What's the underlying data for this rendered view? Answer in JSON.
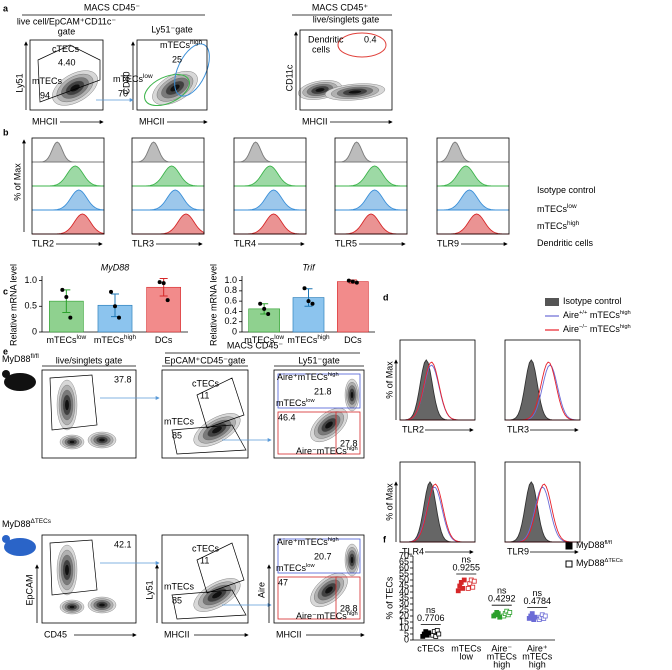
{
  "a": {
    "label": "a",
    "group_left": "MACS CD45⁻",
    "group_right": "MACS CD45⁺",
    "plots": [
      {
        "gate": [
          "live cell/EpCAM⁺CD11c⁻",
          "gate"
        ],
        "y_axis": "Ly51",
        "x_axis": "MHCII",
        "populations": [
          {
            "name": [
              "cTECs"
            ],
            "value": "4.40"
          },
          {
            "name": [
              "mTECs"
            ],
            "value": "94"
          }
        ]
      },
      {
        "gate": [
          "Ly51⁻gate"
        ],
        "y_axis": "CD80",
        "x_axis": "MHCII",
        "populations": [
          {
            "name": [
              "mTECs",
              "high"
            ],
            "value": "25",
            "color": "#3a8fd8"
          },
          {
            "name": [
              "mTECs",
              "low"
            ],
            "value": "70",
            "color": "#3cb44b"
          }
        ]
      },
      {
        "gate": [
          "live/singlets gate"
        ],
        "y_axis": "CD11c",
        "x_axis": "MHCII",
        "populations": [
          {
            "lines": [
              "Dendritic",
              "cells"
            ],
            "value": "0.4",
            "color": "#e0403a"
          }
        ]
      }
    ]
  },
  "b": {
    "label": "b",
    "y_axis": "% of Max",
    "markers": [
      "TLR2",
      "TLR3",
      "TLR4",
      "TLR5",
      "TLR9"
    ],
    "legend": [
      {
        "name": [
          "Isotype control"
        ],
        "color": "#7a7a7a"
      },
      {
        "name": [
          "mTECs",
          "low"
        ],
        "color": "#3cb44b"
      },
      {
        "name": [
          "mTECs",
          "high"
        ],
        "color": "#3a8fd8"
      },
      {
        "name": [
          "Dendritic cells"
        ],
        "color": "#d62728"
      }
    ]
  },
  "c": {
    "label": "c",
    "y_axis": "Relative mRNA level",
    "categories": [
      [
        "mTECs",
        "low"
      ],
      [
        "mTECs",
        "high"
      ],
      [
        "DCs"
      ]
    ],
    "colors": [
      "#8fd18f",
      "#8cc4ee",
      "#f28b8b"
    ],
    "label_colors": [
      "#2ca02c",
      "#1f77b4",
      "#d62728"
    ],
    "charts": [
      {
        "title": "MyD88",
        "ylim": [
          0,
          1.05
        ],
        "yticks": [
          0,
          0.5,
          {
            "value": 1,
            "label": "1.0"
          }
        ],
        "values": [
          0.6,
          0.52,
          0.87
        ],
        "errors": [
          0.22,
          0.22,
          0.17
        ],
        "points": [
          [
            0.82,
            0.68,
            0.28
          ],
          [
            0.78,
            0.5,
            0.28
          ],
          [
            0.97,
            0.95,
            0.62
          ]
        ]
      },
      {
        "title": "Trif",
        "ylim": [
          0,
          1.05
        ],
        "yticks": [
          0,
          0.2,
          0.4,
          0.6,
          0.8,
          {
            "value": 1,
            "label": "1.0"
          }
        ],
        "values": [
          0.45,
          0.67,
          0.98
        ],
        "errors": [
          0.1,
          0.17,
          0.03
        ],
        "points": [
          [
            0.55,
            0.45,
            0.35
          ],
          [
            0.85,
            0.6,
            0.55
          ],
          [
            1.0,
            0.98,
            0.96
          ]
        ]
      }
    ]
  },
  "d": {
    "label": "d",
    "y_axis": "% of Max",
    "markers": [
      "TLR2",
      "TLR3",
      "TLR4",
      "TLR9"
    ],
    "legend": [
      {
        "name": [
          "Isotype control"
        ],
        "color": "#555555"
      },
      {
        "name": [
          "Aire",
          "+/+",
          " mTECs",
          "high"
        ],
        "color": "#6b6bd6"
      },
      {
        "name": [
          "Aire",
          "−/−",
          " mTECs",
          "high"
        ],
        "color": "#e8202a"
      }
    ]
  },
  "e": {
    "label": "e",
    "group": "MACS CD45⁻",
    "aire_colors": [
      "#4a5bd6",
      "#d62728",
      "#2ca02c"
    ],
    "columns": [
      {
        "gate": "live/singlets gate",
        "y_axis": "EpCAM",
        "x_axis": "CD45"
      },
      {
        "gate": "EpCAM⁺CD45⁻gate",
        "y_axis": "Ly51",
        "x_axis": "MHCII"
      },
      {
        "gate": "Ly51⁻gate",
        "y_axis": "Aire",
        "x_axis": "MHCII"
      }
    ],
    "rows": [
      {
        "mouse": [
          "MyD88",
          "fl/fl"
        ],
        "singlets": "37.8",
        "ly51": [
          {
            "name": "cTECs",
            "value": "11"
          },
          {
            "name": "mTECs",
            "value": "85"
          }
        ],
        "aire": [
          {
            "name": [
              "Aire⁺mTECs",
              "high"
            ],
            "value": "21.8"
          },
          {
            "name": [
              "mTECs",
              "low"
            ],
            "value": "46.4"
          },
          {
            "name": [
              "Aire⁻mTECs",
              "high"
            ],
            "value": "27.8"
          }
        ]
      },
      {
        "mouse": [
          "MyD88",
          "ΔTECs"
        ],
        "singlets": "42.1",
        "ly51": [
          {
            "name": "cTECs",
            "value": "11"
          },
          {
            "name": "mTECs",
            "value": "85"
          }
        ],
        "aire": [
          {
            "name": [
              "Aire⁺mTECs",
              "high"
            ],
            "value": "20.7"
          },
          {
            "name": [
              "mTECs",
              "low"
            ],
            "value": "47"
          },
          {
            "name": [
              "Aire⁻mTECs",
              "high"
            ],
            "value": "28.8"
          }
        ]
      }
    ]
  },
  "f": {
    "label": "f",
    "y_axis": "% of TECs",
    "ylim": [
      0,
      70
    ],
    "yticks": [
      0,
      5,
      10,
      15,
      20,
      25,
      30,
      35,
      40,
      45,
      50,
      55,
      60,
      65,
      70
    ],
    "categories": [
      {
        "lines": [
          "cTECs"
        ],
        "color": "#000000"
      },
      {
        "lines": [
          "mTECs",
          "low"
        ],
        "color": "#d62728"
      },
      {
        "lines": [
          "Aire⁻",
          "mTECs",
          "high"
        ],
        "color": "#2ca02c"
      },
      {
        "lines": [
          "Aire⁺",
          "mTECs",
          "high"
        ],
        "color": "#6b6bd6"
      }
    ],
    "comparisons": [
      {
        "label": "ns",
        "p": 0.7706
      },
      {
        "label": "ns",
        "p": 0.9255
      },
      {
        "label": "ns",
        "p": 0.4292
      },
      {
        "label": "ns",
        "p": 0.4784
      }
    ],
    "series": [
      {
        "name": [
          "MyD88",
          "fl/fl"
        ],
        "marker": "filled",
        "values": [
          [
            3,
            5,
            7,
            4,
            6
          ],
          [
            41,
            45,
            48,
            43,
            50
          ],
          [
            20,
            21,
            23,
            22,
            19
          ],
          [
            18,
            20,
            22,
            17,
            19
          ]
        ]
      },
      {
        "name": [
          "MyD88",
          "ΔTECs"
        ],
        "marker": "open",
        "values": [
          [
            4,
            7,
            3,
            8,
            5
          ],
          [
            43,
            47,
            50,
            44,
            49
          ],
          [
            20,
            22,
            24,
            21,
            23
          ],
          [
            17,
            19,
            21,
            18,
            20
          ]
        ]
      }
    ]
  }
}
